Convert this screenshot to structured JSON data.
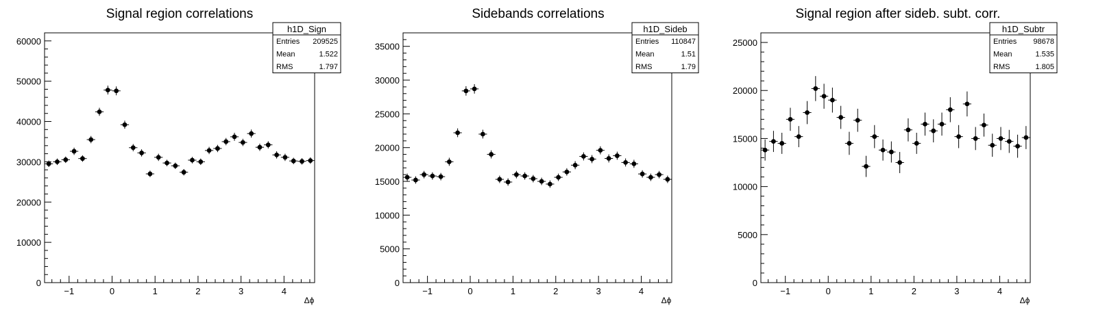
{
  "chart_data": [
    {
      "type": "scatter",
      "title": "Signal region correlations",
      "xlabel": "Δϕ",
      "ylabel": "",
      "xlim": [
        -1.5708,
        4.7124
      ],
      "ylim": [
        0,
        62000
      ],
      "xticks": [
        -1,
        0,
        1,
        2,
        3,
        4
      ],
      "xtick_labels": [
        "−1",
        "0",
        "1",
        "2",
        "3",
        "4"
      ],
      "yticks": [
        0,
        10000,
        20000,
        30000,
        40000,
        50000,
        60000
      ],
      "ytick_labels": [
        "0",
        "10000",
        "20000",
        "30000",
        "40000",
        "50000",
        "60000"
      ],
      "stats": {
        "name": "h1D_Sign",
        "rows": [
          {
            "label": "Entries",
            "value": "209525"
          },
          {
            "label": "Mean",
            "value": "1.522"
          },
          {
            "label": "RMS",
            "value": "1.797"
          }
        ]
      },
      "series": [
        {
          "x": [
            -1.4726,
            -1.2763,
            -1.0799,
            -0.8836,
            -0.6872,
            -0.4909,
            -0.2945,
            -0.0982,
            0.0982,
            0.2945,
            0.4909,
            0.6872,
            0.8836,
            1.0799,
            1.2763,
            1.4726,
            1.669,
            1.8653,
            2.0617,
            2.258,
            2.4544,
            2.6507,
            2.8471,
            3.0434,
            3.2398,
            3.4361,
            3.6325,
            3.8288,
            4.0252,
            4.2215,
            4.4179,
            4.6142
          ],
          "y": [
            29500,
            30000,
            30500,
            32600,
            30800,
            35500,
            42400,
            47800,
            47600,
            39200,
            33500,
            32200,
            27000,
            31100,
            29700,
            29000,
            27400,
            30400,
            30000,
            32800,
            33300,
            35000,
            36200,
            34800,
            37000,
            33600,
            34200,
            31700,
            31100,
            30200,
            30100,
            30300
          ],
          "yerr": [
            800,
            800,
            800,
            900,
            800,
            900,
            1000,
            1100,
            1100,
            1000,
            900,
            900,
            800,
            900,
            800,
            800,
            800,
            800,
            800,
            900,
            900,
            900,
            1000,
            900,
            1000,
            900,
            900,
            900,
            900,
            800,
            800,
            800
          ]
        }
      ]
    },
    {
      "type": "scatter",
      "title": "Sidebands correlations",
      "xlabel": "Δϕ",
      "ylabel": "",
      "xlim": [
        -1.5708,
        4.7124
      ],
      "ylim": [
        0,
        37000
      ],
      "xticks": [
        -1,
        0,
        1,
        2,
        3,
        4
      ],
      "xtick_labels": [
        "−1",
        "0",
        "1",
        "2",
        "3",
        "4"
      ],
      "yticks": [
        0,
        5000,
        10000,
        15000,
        20000,
        25000,
        30000,
        35000
      ],
      "ytick_labels": [
        "0",
        "5000",
        "10000",
        "15000",
        "20000",
        "25000",
        "30000",
        "35000"
      ],
      "stats": {
        "name": "h1D_Sideb",
        "rows": [
          {
            "label": "Entries",
            "value": "110847"
          },
          {
            "label": "Mean",
            "value": "1.51"
          },
          {
            "label": "RMS",
            "value": "1.79"
          }
        ]
      },
      "series": [
        {
          "x": [
            -1.4726,
            -1.2763,
            -1.0799,
            -0.8836,
            -0.6872,
            -0.4909,
            -0.2945,
            -0.0982,
            0.0982,
            0.2945,
            0.4909,
            0.6872,
            0.8836,
            1.0799,
            1.2763,
            1.4726,
            1.669,
            1.8653,
            2.0617,
            2.258,
            2.4544,
            2.6507,
            2.8471,
            3.0434,
            3.2398,
            3.4361,
            3.6325,
            3.8288,
            4.0252,
            4.2215,
            4.4179,
            4.6142
          ],
          "y": [
            15600,
            15200,
            16000,
            15800,
            15700,
            17900,
            22200,
            28400,
            28700,
            22000,
            19000,
            15300,
            14900,
            16000,
            15800,
            15400,
            15000,
            14600,
            15600,
            16400,
            17400,
            18700,
            18300,
            19600,
            18400,
            18800,
            17800,
            17600,
            16100,
            15600,
            16000,
            15300
          ],
          "yerr": [
            550,
            550,
            550,
            550,
            550,
            600,
            650,
            700,
            700,
            650,
            600,
            550,
            550,
            550,
            550,
            550,
            550,
            550,
            550,
            550,
            600,
            600,
            600,
            600,
            600,
            600,
            600,
            600,
            550,
            550,
            550,
            550
          ]
        }
      ]
    },
    {
      "type": "scatter",
      "title": "Signal region after sideb. subt. corr.",
      "xlabel": "Δϕ",
      "ylabel": "",
      "xlim": [
        -1.5708,
        4.7124
      ],
      "ylim": [
        0,
        26000
      ],
      "xticks": [
        -1,
        0,
        1,
        2,
        3,
        4
      ],
      "xtick_labels": [
        "−1",
        "0",
        "1",
        "2",
        "3",
        "4"
      ],
      "yticks": [
        0,
        5000,
        10000,
        15000,
        20000,
        25000
      ],
      "ytick_labels": [
        "0",
        "5000",
        "10000",
        "15000",
        "20000",
        "25000"
      ],
      "stats": {
        "name": "h1D_Subtr",
        "rows": [
          {
            "label": "Entries",
            "value": "98678"
          },
          {
            "label": "Mean",
            "value": "1.535"
          },
          {
            "label": "RMS",
            "value": "1.805"
          }
        ]
      },
      "series": [
        {
          "x": [
            -1.4726,
            -1.2763,
            -1.0799,
            -0.8836,
            -0.6872,
            -0.4909,
            -0.2945,
            -0.0982,
            0.0982,
            0.2945,
            0.4909,
            0.6872,
            0.8836,
            1.0799,
            1.2763,
            1.4726,
            1.669,
            1.8653,
            2.0617,
            2.258,
            2.4544,
            2.6507,
            2.8471,
            3.0434,
            3.2398,
            3.4361,
            3.6325,
            3.8288,
            4.0252,
            4.2215,
            4.4179,
            4.6142
          ],
          "y": [
            13800,
            14700,
            14500,
            17000,
            15200,
            17700,
            20200,
            19400,
            19000,
            17200,
            14500,
            16900,
            12100,
            15200,
            13800,
            13600,
            12500,
            15900,
            14500,
            16500,
            15800,
            16500,
            18000,
            15200,
            18600,
            15000,
            16400,
            14300,
            15000,
            14700,
            14200,
            15100
          ],
          "yerr": [
            1100,
            1100,
            1100,
            1200,
            1100,
            1200,
            1300,
            1300,
            1300,
            1200,
            1200,
            1200,
            1100,
            1200,
            1100,
            1100,
            1100,
            1200,
            1100,
            1200,
            1200,
            1200,
            1300,
            1200,
            1300,
            1200,
            1200,
            1200,
            1200,
            1200,
            1200,
            1200
          ]
        }
      ]
    }
  ]
}
